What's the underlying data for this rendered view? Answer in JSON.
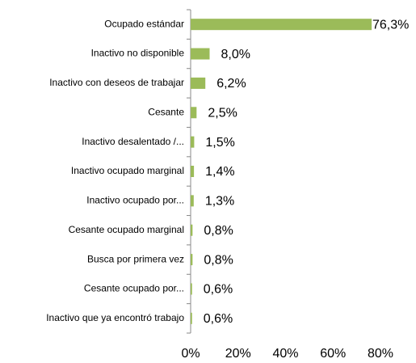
{
  "chart_data": {
    "type": "bar",
    "orientation": "horizontal",
    "categories": [
      "Ocupado estándar",
      "Inactivo no disponible",
      "Inactivo con deseos de trabajar",
      "Cesante",
      "Inactivo desalentado /...",
      "Inactivo ocupado marginal",
      "Inactivo ocupado por...",
      "Cesante ocupado marginal",
      "Busca por primera vez",
      "Cesante ocupado por...",
      "Inactivo que ya encontró trabajo"
    ],
    "values": [
      76.3,
      8.0,
      6.2,
      2.5,
      1.5,
      1.4,
      1.3,
      0.8,
      0.8,
      0.6,
      0.6
    ],
    "value_labels": [
      "76,3%",
      "8,0%",
      "6,2%",
      "2,5%",
      "1,5%",
      "1,4%",
      "1,3%",
      "0,8%",
      "0,8%",
      "0,6%",
      "0,6%"
    ],
    "color": "#9bbb59",
    "xlim": [
      0,
      80
    ],
    "xticks": [
      {
        "value": 0,
        "label": "0%"
      },
      {
        "value": 20,
        "label": "20%"
      },
      {
        "value": 40,
        "label": "40%"
      },
      {
        "value": 60,
        "label": "60%"
      },
      {
        "value": 80,
        "label": "80%"
      }
    ],
    "grid": false
  }
}
